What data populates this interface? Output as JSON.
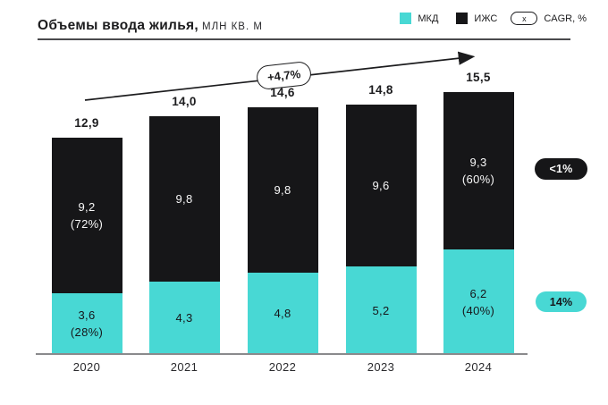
{
  "header": {
    "title_bold": "Объемы ввода жилья,",
    "title_unit": "млн кв. м"
  },
  "legend": {
    "mkd_label": "МКД",
    "izhs_label": "ИЖС",
    "cagr_symbol": "x",
    "cagr_label": "CAGR, %"
  },
  "colors": {
    "mkd": "#48d8d4",
    "izhs": "#161618",
    "axis": "#8a8a8c",
    "text_dark": "#1c1c1e"
  },
  "growth_arrow": {
    "label": "+4,7%"
  },
  "cagr_badges": {
    "izhs": "<1%",
    "mkd": "14%"
  },
  "chart_data": {
    "type": "bar",
    "stacked": true,
    "title": "Объемы ввода жилья, млн кв. м",
    "categories": [
      "2020",
      "2021",
      "2022",
      "2023",
      "2024"
    ],
    "series": [
      {
        "name": "МКД",
        "color": "#48d8d4",
        "values": [
          3.6,
          4.3,
          4.8,
          5.2,
          6.2
        ],
        "labels": [
          [
            "3,6",
            "(28%)"
          ],
          [
            "4,3"
          ],
          [
            "4,8"
          ],
          [
            "5,2"
          ],
          [
            "6,2",
            "(40%)"
          ]
        ]
      },
      {
        "name": "ИЖС",
        "color": "#161618",
        "values": [
          9.2,
          9.8,
          9.8,
          9.6,
          9.3
        ],
        "labels": [
          [
            "9,2",
            "(72%)"
          ],
          [
            "9,8"
          ],
          [
            "9,8"
          ],
          [
            "9,6"
          ],
          [
            "9,3",
            "(60%)"
          ]
        ]
      }
    ],
    "totals": [
      "12,9",
      "14,0",
      "14,6",
      "14,8",
      "15,5"
    ],
    "total_values": [
      12.9,
      14.0,
      14.6,
      14.8,
      15.5
    ],
    "cagr_total": "+4,7%",
    "cagr_izhs": "<1%",
    "cagr_mkd": "14%",
    "ylim": [
      0,
      16
    ],
    "grid": false,
    "legend_position": "top-right"
  }
}
